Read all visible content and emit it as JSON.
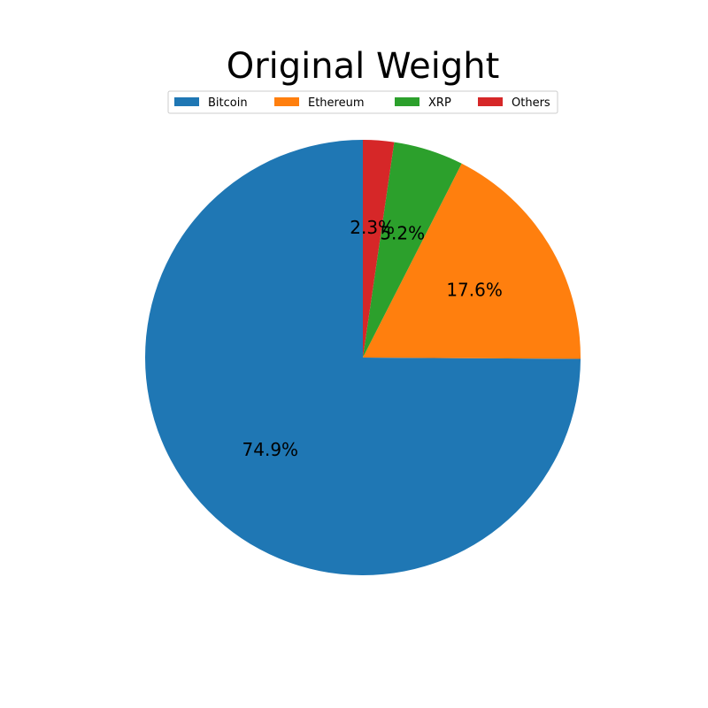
{
  "chart_data": {
    "type": "pie",
    "title": "Original Weight",
    "categories": [
      "Bitcoin",
      "Ethereum",
      "XRP",
      "Others"
    ],
    "values": [
      74.9,
      17.6,
      5.2,
      2.3
    ],
    "labels": [
      "74.9%",
      "17.6%",
      "5.2%",
      "2.3%"
    ],
    "colors": [
      "#1f77b4",
      "#ff7f0e",
      "#2ca02c",
      "#d62728"
    ],
    "start_angle_deg": 90,
    "direction": "counterclockwise",
    "legend_position": "top-center"
  }
}
